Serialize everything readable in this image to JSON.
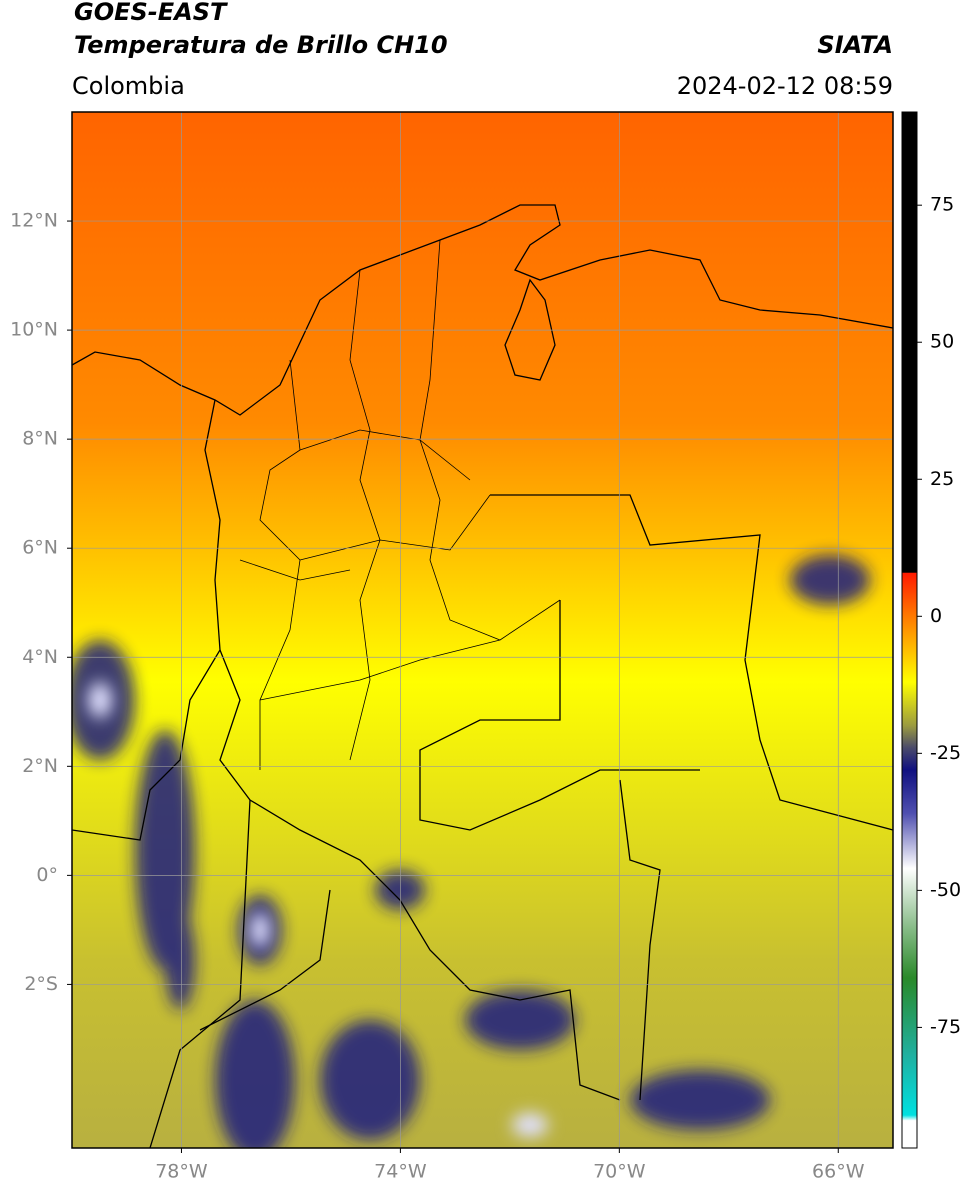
{
  "header": {
    "source": "GOES-EAST",
    "title": "Temperatura de Brillo CH10",
    "agency": "SIATA",
    "region": "Colombia",
    "timestamp": "2024-02-12 08:59"
  },
  "map": {
    "xlim": [
      -80,
      -65
    ],
    "ylim": [
      -5,
      14
    ],
    "xticks": [
      {
        "value": -78,
        "label": "78°W"
      },
      {
        "value": -74,
        "label": "74°W"
      },
      {
        "value": -70,
        "label": "70°W"
      },
      {
        "value": -66,
        "label": "66°W"
      }
    ],
    "yticks": [
      {
        "value": 12,
        "label": "12°N"
      },
      {
        "value": 10,
        "label": "10°N"
      },
      {
        "value": 8,
        "label": "8°N"
      },
      {
        "value": 6,
        "label": "6°N"
      },
      {
        "value": 4,
        "label": "4°N"
      },
      {
        "value": 2,
        "label": "2°N"
      },
      {
        "value": 0,
        "label": "0°"
      },
      {
        "value": -2,
        "label": "2°S"
      }
    ],
    "grid": true
  },
  "colorbar": {
    "lim": [
      -97,
      92
    ],
    "ticks": [
      75,
      50,
      25,
      0,
      -25,
      -50,
      -75
    ],
    "colormap": [
      {
        "value": 92,
        "color": "#000000"
      },
      {
        "value": 8,
        "color": "#000000"
      },
      {
        "value": 7.9,
        "color": "#ff1a00"
      },
      {
        "value": 0,
        "color": "#ff7a00"
      },
      {
        "value": -12,
        "color": "#ffff00"
      },
      {
        "value": -20,
        "color": "#9a9a40"
      },
      {
        "value": -24,
        "color": "#4a4a6a"
      },
      {
        "value": -28,
        "color": "#101080"
      },
      {
        "value": -36,
        "color": "#5050b0"
      },
      {
        "value": -46,
        "color": "#ffffff"
      },
      {
        "value": -56,
        "color": "#90c090"
      },
      {
        "value": -66,
        "color": "#2a8a2a"
      },
      {
        "value": -80,
        "color": "#20b0a0"
      },
      {
        "value": -91,
        "color": "#00e0e0"
      },
      {
        "value": -92,
        "color": "#ffffff"
      },
      {
        "value": -97,
        "color": "#ffffff"
      }
    ]
  }
}
